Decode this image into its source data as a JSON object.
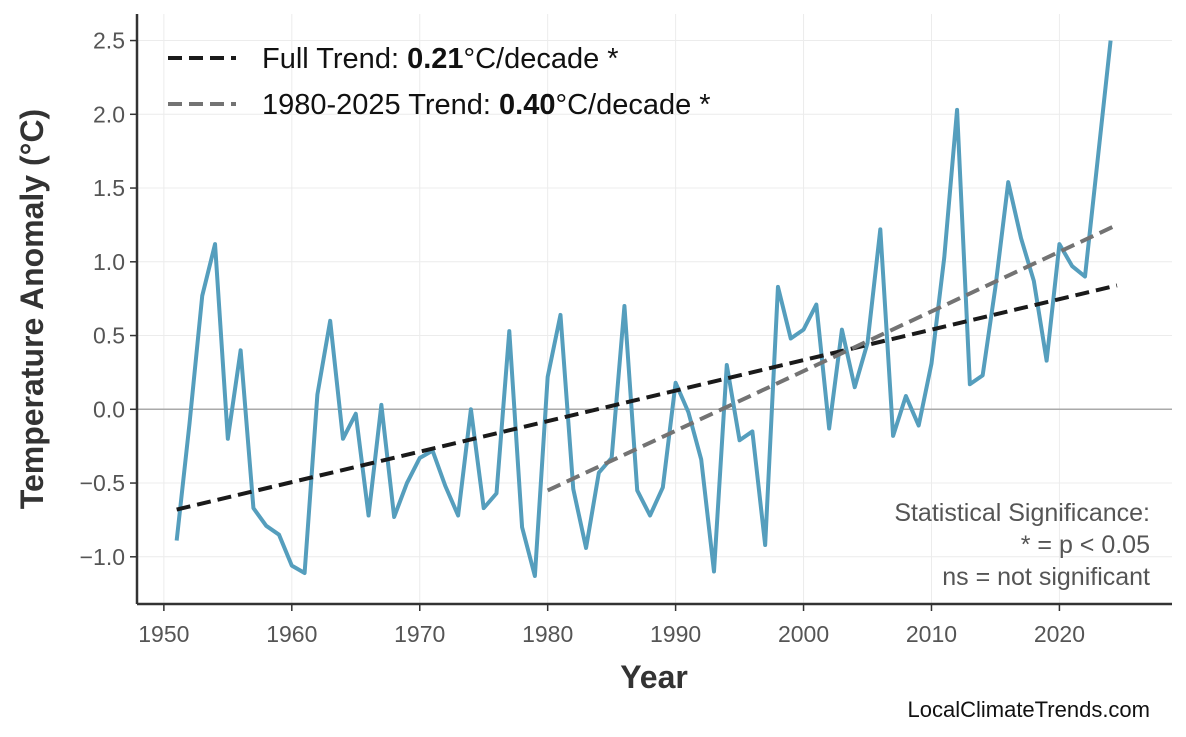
{
  "chart_data": {
    "type": "line",
    "x_label": "Year",
    "y_label": "Temperature Anomaly (°C)",
    "x": [
      1951,
      1952,
      1953,
      1954,
      1955,
      1956,
      1957,
      1958,
      1959,
      1960,
      1961,
      1962,
      1963,
      1964,
      1965,
      1966,
      1967,
      1968,
      1969,
      1970,
      1971,
      1972,
      1973,
      1974,
      1975,
      1976,
      1977,
      1978,
      1979,
      1980,
      1981,
      1982,
      1983,
      1984,
      1985,
      1986,
      1987,
      1988,
      1989,
      1990,
      1991,
      1992,
      1993,
      1994,
      1995,
      1996,
      1997,
      1998,
      1999,
      2000,
      2001,
      2002,
      2003,
      2004,
      2005,
      2006,
      2007,
      2008,
      2009,
      2010,
      2011,
      2012,
      2013,
      2014,
      2015,
      2016,
      2017,
      2018,
      2019,
      2020,
      2021,
      2022,
      2023,
      2024
    ],
    "series": [
      {
        "color": "#559ebd",
        "values": [
          -0.89,
          -0.1,
          0.77,
          1.12,
          -0.2,
          0.4,
          -0.67,
          -0.79,
          -0.85,
          -1.06,
          -1.11,
          0.1,
          0.6,
          -0.2,
          -0.03,
          -0.72,
          0.03,
          -0.73,
          -0.5,
          -0.33,
          -0.28,
          -0.52,
          -0.72,
          0.0,
          -0.67,
          -0.57,
          0.53,
          -0.8,
          -1.13,
          0.22,
          0.64,
          -0.54,
          -0.94,
          -0.43,
          -0.33,
          0.7,
          -0.55,
          -0.72,
          -0.53,
          0.18,
          -0.02,
          -0.34,
          -1.1,
          0.3,
          -0.21,
          -0.15,
          -0.92,
          0.83,
          0.48,
          0.54,
          0.71,
          -0.13,
          0.54,
          0.15,
          0.45,
          1.22,
          -0.18,
          0.09,
          -0.11,
          0.31,
          1.03,
          2.03,
          0.17,
          0.23,
          0.83,
          1.54,
          1.16,
          0.87,
          0.33,
          1.12,
          0.97,
          0.9,
          1.7,
          2.5
        ]
      }
    ],
    "trends": [
      {
        "name": "Full Trend: ",
        "slope": "0.21",
        "unit": "°C/decade *",
        "color": "#1a1a1a",
        "x": [
          1951,
          2024.5
        ],
        "values": [
          -0.68,
          0.84
        ]
      },
      {
        "name": "1980-2025 Trend: ",
        "slope": "0.40",
        "unit": "°C/decade *",
        "color": "#737373",
        "x": [
          1980,
          2024.5
        ],
        "values": [
          -0.55,
          1.25
        ]
      }
    ],
    "reference_line": 0,
    "annotation": [
      "Statistical Significance:",
      "* = p < 0.05",
      "ns = not significant"
    ],
    "source": "LocalClimateTrends.com",
    "xlim": [
      1947.9,
      2028.8
    ],
    "ylim": [
      -1.32,
      2.68
    ],
    "xticks": [
      1950,
      1960,
      1970,
      1980,
      1990,
      2000,
      2010,
      2020
    ],
    "yticks": [
      {
        "value": -1,
        "label": "−1.0"
      },
      {
        "value": -0.5,
        "label": "−0.5"
      },
      {
        "value": 0,
        "label": "0.0"
      },
      0.5,
      {
        "value": 1,
        "label": "1.0"
      },
      1.5,
      {
        "value": 2,
        "label": "2.0"
      },
      2.5
    ],
    "grid": true,
    "legend": "upper left"
  }
}
